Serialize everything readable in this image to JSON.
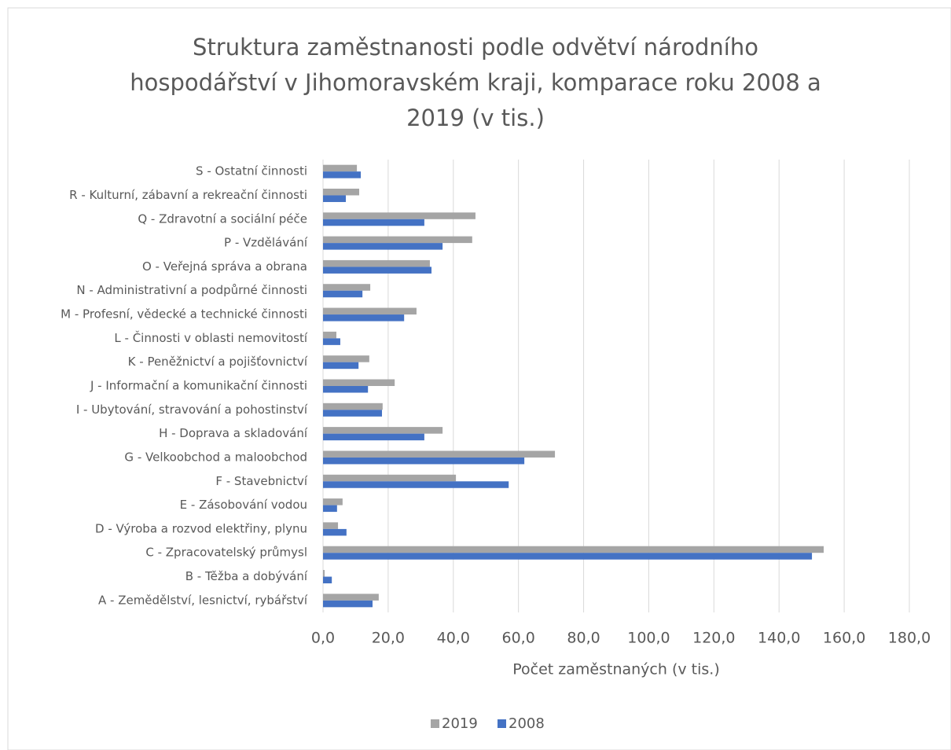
{
  "chart_data": {
    "type": "barh",
    "title": "Struktura zaměstnanosti podle odvětví národního hospodářství v Jihomoravském kraji, komparace roku 2008 a 2019 (v tis.)",
    "x_label": "Počet zaměstnaných (v tis.)",
    "categories": [
      "A - Zemědělství, lesnictví, rybářství",
      "B - Těžba a dobývání",
      "C - Zpracovatelský průmysl",
      "D - Výroba a rozvod elektřiny, plynu",
      "E - Zásobování vodou",
      "F - Stavebnictví",
      "G - Velkoobchod a maloobchod",
      "H - Doprava a skladování",
      "I - Ubytování, stravování a pohostinství",
      "J - Informační a komunikační činnosti",
      "K - Peněžnictví a pojišťovnictví",
      "L - Činnosti v oblasti nemovitostí",
      "M - Profesní, vědecké a technické činnosti",
      "N - Administrativní a podpůrné činnosti",
      "O - Veřejná správa a obrana",
      "P - Vzdělávání",
      "Q - Zdravotní a sociální péče",
      "R - Kulturní, zábavní a rekreační činnosti",
      "S - Ostatní činnosti"
    ],
    "series": [
      {
        "name": "2019",
        "color": "#a5a5a5",
        "values": [
          17.1,
          0.5,
          153.7,
          4.6,
          6.0,
          40.8,
          71.2,
          36.7,
          18.3,
          22.0,
          14.2,
          4.1,
          28.7,
          14.5,
          32.8,
          45.8,
          46.8,
          11.1,
          10.4
        ]
      },
      {
        "name": "2008",
        "color": "#4472c4",
        "values": [
          15.2,
          2.7,
          150.1,
          7.2,
          4.3,
          57.0,
          61.8,
          31.1,
          18.1,
          13.8,
          10.9,
          5.3,
          24.9,
          12.1,
          33.3,
          36.7,
          31.1,
          7.0,
          11.6
        ]
      }
    ],
    "xlim": [
      0,
      180
    ],
    "xticks": [
      {
        "value": 0,
        "label": "0,0"
      },
      {
        "value": 20,
        "label": "20,0"
      },
      {
        "value": 40,
        "label": "40,0"
      },
      {
        "value": 60,
        "label": "60,0"
      },
      {
        "value": 80,
        "label": "80,0"
      },
      {
        "value": 100,
        "label": "100,0"
      },
      {
        "value": 120,
        "label": "120,0"
      },
      {
        "value": 140,
        "label": "140,0"
      },
      {
        "value": 160,
        "label": "160,0"
      },
      {
        "value": 180,
        "label": "180,0"
      }
    ],
    "grid": true,
    "legend": "bottom"
  }
}
